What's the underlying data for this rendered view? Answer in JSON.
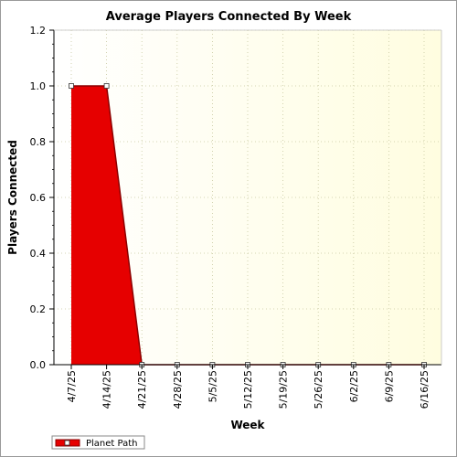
{
  "chart_data": {
    "type": "area",
    "title": "Average Players Connected By Week",
    "xlabel": "Week",
    "ylabel": "Players Connected",
    "categories": [
      "4/7/25",
      "4/14/25",
      "4/21/25",
      "4/28/25",
      "5/5/25",
      "5/12/25",
      "5/19/25",
      "5/26/25",
      "6/2/25",
      "6/9/25",
      "6/16/25"
    ],
    "series": [
      {
        "name": "Planet Path",
        "values": [
          1.0,
          1.0,
          0.0,
          0.0,
          0.0,
          0.0,
          0.0,
          0.0,
          0.0,
          0.0,
          0.0
        ],
        "fill_color": "#e60000",
        "line_color": "#8b0000"
      }
    ],
    "ylim": [
      0,
      1.2
    ],
    "y_ticks": [
      "0.0",
      "0.2",
      "0.4",
      "0.6",
      "0.8",
      "1.0",
      "1.2"
    ],
    "grid": true,
    "legend_position": "bottom-left",
    "colors": {
      "plot_bg_left": "#ffffff",
      "plot_bg_right": "#fffde0",
      "grid": "#c8c8a0"
    }
  }
}
